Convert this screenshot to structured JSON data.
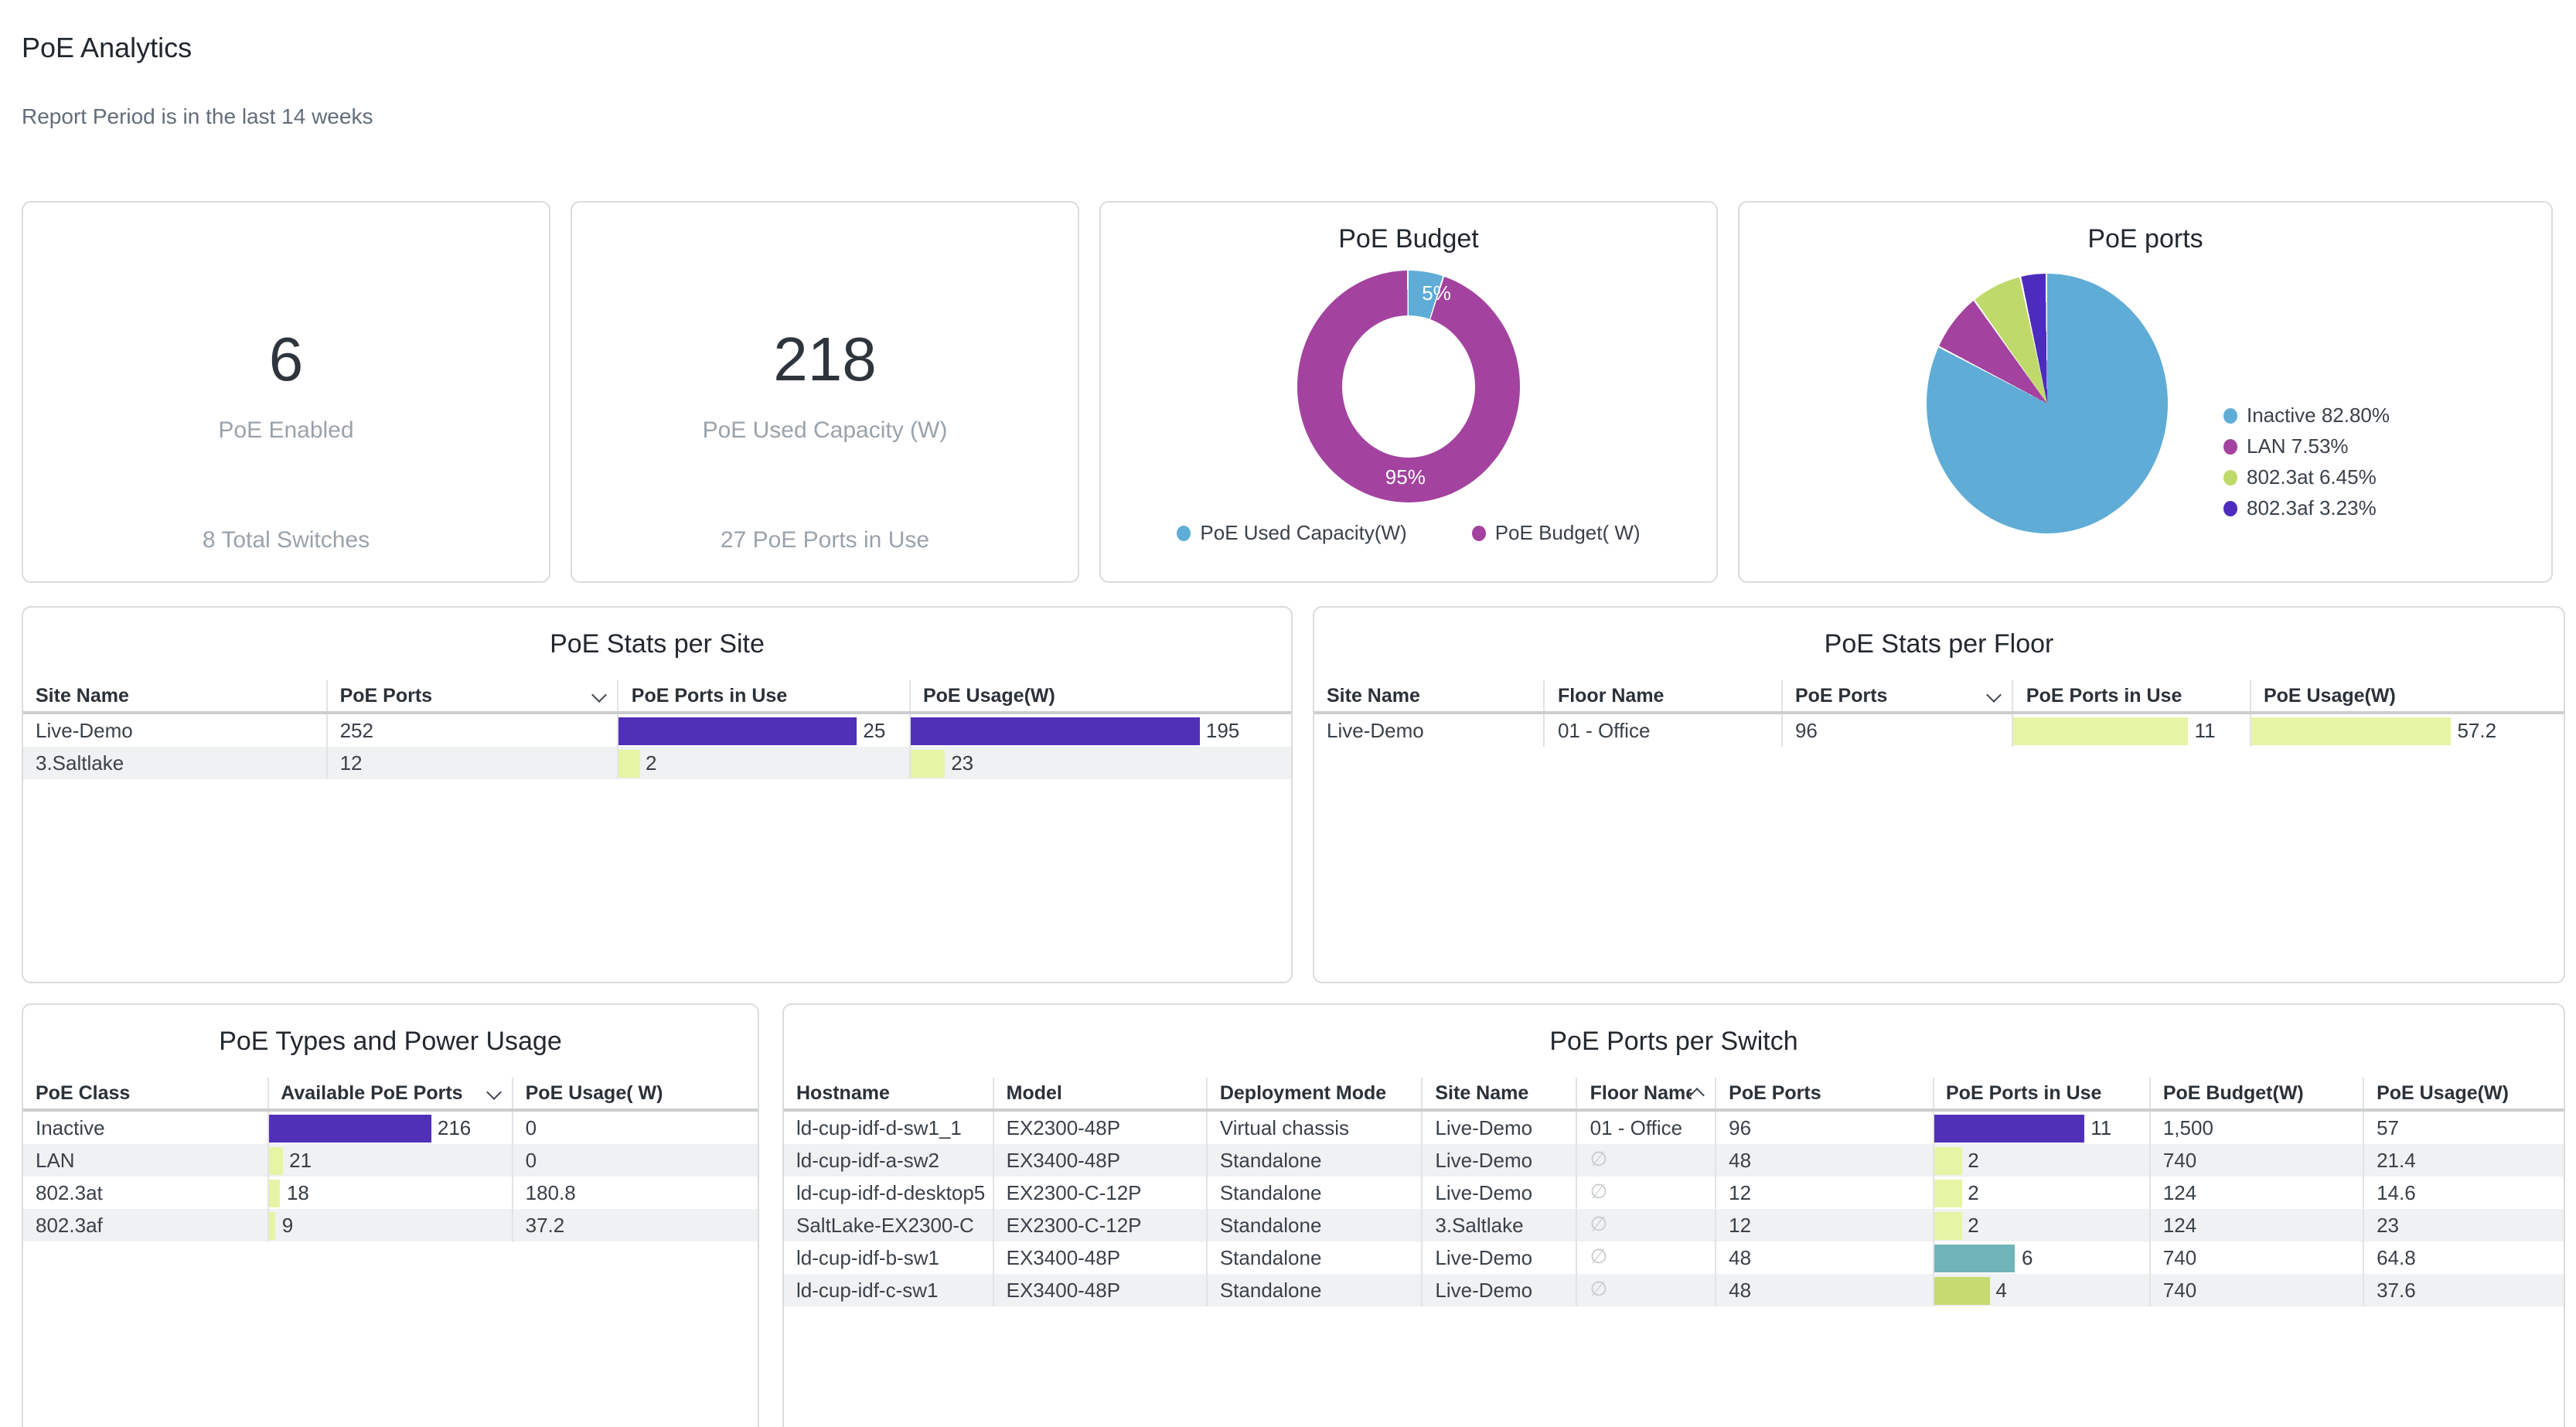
{
  "page": {
    "title": "PoE Analytics",
    "subtitle": "Report Period is in the last 14 weeks"
  },
  "summary_cards": [
    {
      "value": "6",
      "label": "PoE Enabled",
      "footer": "8 Total Switches"
    },
    {
      "value": "218",
      "label": "PoE Used Capacity (W)",
      "footer": "27 PoE Ports in Use"
    }
  ],
  "chart_data": [
    {
      "type": "pie",
      "variant": "donut",
      "title": "PoE Budget",
      "legend_position": "bottom",
      "slices": [
        {
          "label": "PoE Used Capacity(W)",
          "pct": 5,
          "display_pct": "5%",
          "color": "#5facd6"
        },
        {
          "label": "PoE Budget( W)",
          "pct": 95,
          "display_pct": "95%",
          "color": "#a3439f"
        }
      ]
    },
    {
      "type": "pie",
      "title": "PoE ports",
      "legend_position": "right",
      "slices": [
        {
          "label": "Inactive",
          "pct": 82.8,
          "legend": "Inactive 82.80%",
          "color": "#5facd6"
        },
        {
          "label": "LAN",
          "pct": 7.53,
          "legend": "LAN 7.53%",
          "color": "#a3439f"
        },
        {
          "label": "802.3at",
          "pct": 6.45,
          "legend": "802.3at 6.45%",
          "color": "#bfd96b"
        },
        {
          "label": "802.3af",
          "pct": 3.23,
          "legend": "802.3af 3.23%",
          "color": "#4c2bbd"
        }
      ]
    }
  ],
  "tables": {
    "site": {
      "title": "PoE Stats per Site",
      "columns": [
        {
          "label": "Site Name"
        },
        {
          "label": "PoE Ports",
          "sort": "desc"
        },
        {
          "label": "PoE Ports in Use"
        },
        {
          "label": "PoE Usage(W)"
        }
      ],
      "rows": [
        {
          "site": "Live-Demo",
          "ports": "252",
          "in_use": {
            "v": "25",
            "pct": 82,
            "color": "#5130b8"
          },
          "usage": {
            "v": "195",
            "pct": 76,
            "color": "#5130b8"
          }
        },
        {
          "site": "3.Saltlake",
          "ports": "12",
          "in_use": {
            "v": "2",
            "pct": 7,
            "color": "#e6f4a6"
          },
          "usage": {
            "v": "23",
            "pct": 9,
            "color": "#e6f4a6"
          }
        }
      ]
    },
    "floor": {
      "title": "PoE Stats per Floor",
      "columns": [
        {
          "label": "Site Name"
        },
        {
          "label": "Floor Name"
        },
        {
          "label": "PoE Ports",
          "sort": "desc"
        },
        {
          "label": "PoE Ports in Use"
        },
        {
          "label": "PoE Usage(W)"
        }
      ],
      "rows": [
        {
          "site": "Live-Demo",
          "floor": "01 - Office",
          "ports": "96",
          "in_use": {
            "v": "11",
            "pct": 74,
            "color": "#e6f4a6"
          },
          "usage": {
            "v": "57.2",
            "pct": 64,
            "color": "#e6f4a6"
          }
        }
      ]
    },
    "types": {
      "title": "PoE Types and Power Usage",
      "columns": [
        {
          "label": "PoE Class"
        },
        {
          "label": "Available PoE Ports",
          "sort": "desc"
        },
        {
          "label": "PoE Usage( W)"
        }
      ],
      "rows": [
        {
          "class": "Inactive",
          "available": {
            "v": "216",
            "pct": 67,
            "color": "#5130b8"
          },
          "usage": "0"
        },
        {
          "class": "LAN",
          "available": {
            "v": "21",
            "pct": 6,
            "color": "#e6f4a6"
          },
          "usage": "0"
        },
        {
          "class": "802.3at",
          "available": {
            "v": "18",
            "pct": 5,
            "color": "#e6f4a6"
          },
          "usage": "180.8"
        },
        {
          "class": "802.3af",
          "available": {
            "v": "9",
            "pct": 3,
            "color": "#e6f4a6"
          },
          "usage": "37.2"
        }
      ]
    },
    "switch": {
      "title": "PoE Ports per Switch",
      "columns": [
        {
          "label": "Hostname"
        },
        {
          "label": "Model"
        },
        {
          "label": "Deployment Mode"
        },
        {
          "label": "Site Name"
        },
        {
          "label": "Floor Name",
          "sort": "asc"
        },
        {
          "label": "PoE Ports"
        },
        {
          "label": "PoE Ports in Use"
        },
        {
          "label": "PoE Budget(W)"
        },
        {
          "label": "PoE Usage(W)"
        }
      ],
      "rows": [
        {
          "hostname": "ld-cup-idf-d-sw1_1",
          "model": "EX2300-48P",
          "deploy": "Virtual chassis",
          "site": "Live-Demo",
          "floor": "01 - Office",
          "ports": "96",
          "in_use": {
            "v": "11",
            "pct": 70,
            "color": "#5130b8"
          },
          "budget": "1,500",
          "usage": "57"
        },
        {
          "hostname": "ld-cup-idf-a-sw2",
          "model": "EX3400-48P",
          "deploy": "Standalone",
          "site": "Live-Demo",
          "floor": "∅",
          "ports": "48",
          "in_use": {
            "v": "2",
            "pct": 13,
            "color": "#e6f4a6"
          },
          "budget": "740",
          "usage": "21.4"
        },
        {
          "hostname": "ld-cup-idf-d-desktop5",
          "model": "EX2300-C-12P",
          "deploy": "Standalone",
          "site": "Live-Demo",
          "floor": "∅",
          "ports": "12",
          "in_use": {
            "v": "2",
            "pct": 13,
            "color": "#e6f4a6"
          },
          "budget": "124",
          "usage": "14.6"
        },
        {
          "hostname": "SaltLake-EX2300-C",
          "model": "EX2300-C-12P",
          "deploy": "Standalone",
          "site": "3.Saltlake",
          "floor": "∅",
          "ports": "12",
          "in_use": {
            "v": "2",
            "pct": 13,
            "color": "#e6f4a6"
          },
          "budget": "124",
          "usage": "23"
        },
        {
          "hostname": "ld-cup-idf-b-sw1",
          "model": "EX3400-48P",
          "deploy": "Standalone",
          "site": "Live-Demo",
          "floor": "∅",
          "ports": "48",
          "in_use": {
            "v": "6",
            "pct": 38,
            "color": "#6fb5b9"
          },
          "budget": "740",
          "usage": "64.8"
        },
        {
          "hostname": "ld-cup-idf-c-sw1",
          "model": "EX3400-48P",
          "deploy": "Standalone",
          "site": "Live-Demo",
          "floor": "∅",
          "ports": "48",
          "in_use": {
            "v": "4",
            "pct": 26,
            "color": "#c5da70"
          },
          "budget": "740",
          "usage": "37.6"
        }
      ]
    }
  }
}
